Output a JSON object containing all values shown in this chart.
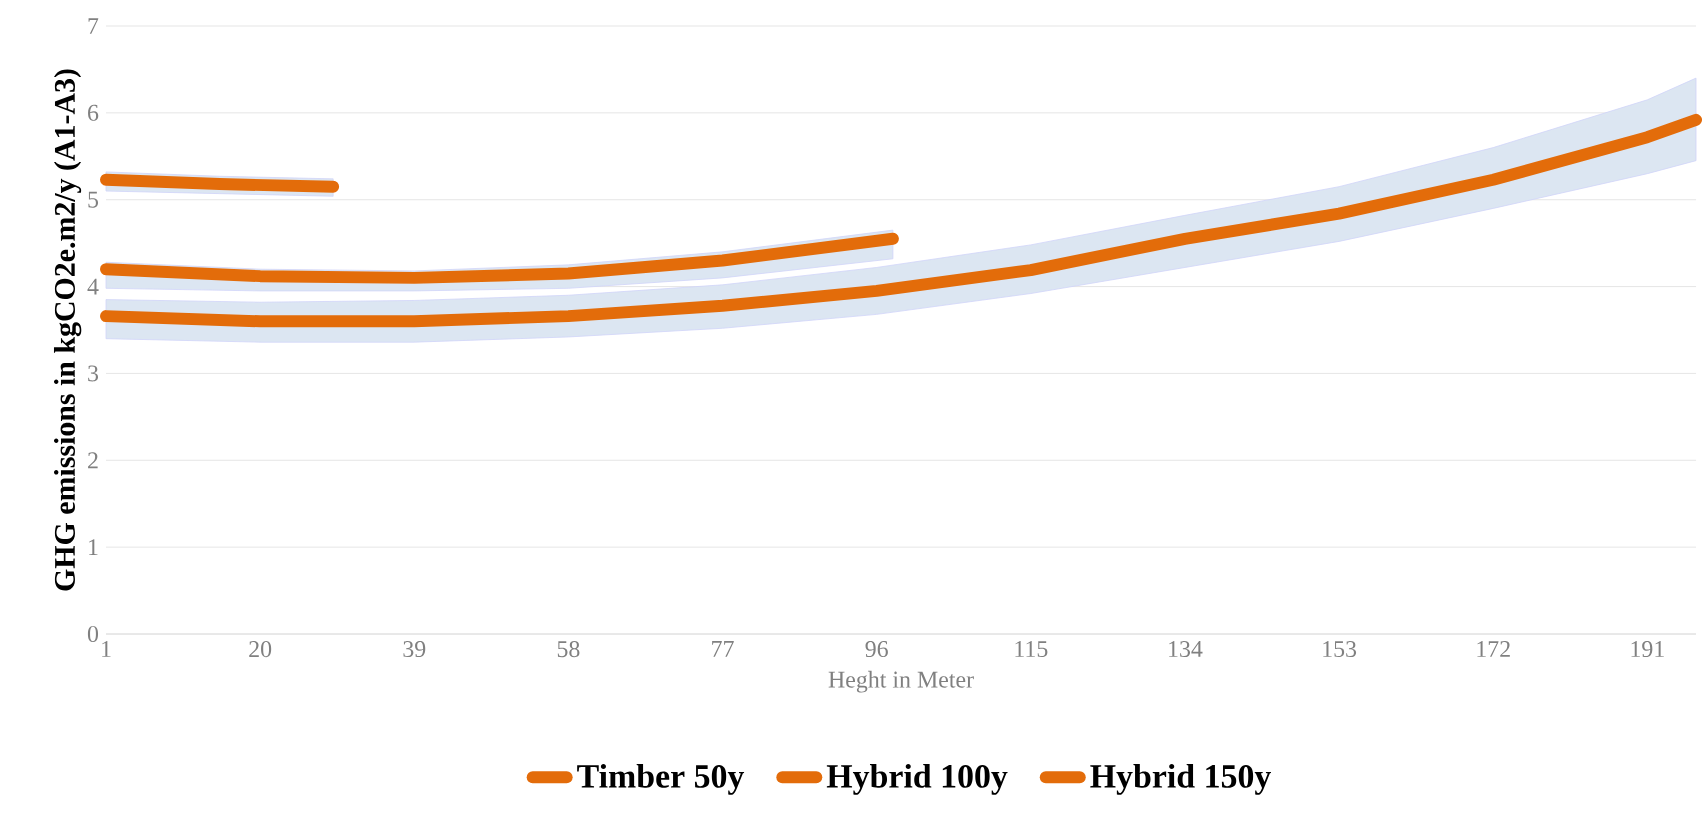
{
  "chart_data": {
    "type": "line",
    "xlabel": "Heght in Meter",
    "ylabel": "GHG emissions in kgCO2e.m2/y (A1-A3)",
    "xlim": [
      1,
      197
    ],
    "xticks": [
      1,
      20,
      39,
      58,
      77,
      96,
      115,
      134,
      153,
      172,
      191
    ],
    "ylim": [
      0,
      7
    ],
    "yticks": [
      0,
      1,
      2,
      3,
      4,
      5,
      6,
      7
    ],
    "grid": "y",
    "legend": "bottom",
    "marker": "none",
    "line_style": "solid",
    "series": [
      {
        "name": "Timber 50y",
        "color": "#e36c0a",
        "x": [
          1,
          15,
          29
        ],
        "values": [
          5.23,
          5.18,
          5.15
        ],
        "lower": [
          5.1,
          5.07,
          5.04
        ],
        "upper": [
          5.32,
          5.27,
          5.24
        ]
      },
      {
        "name": "Hybrid 100y",
        "color": "#e36c0a",
        "x": [
          1,
          20,
          39,
          58,
          77,
          98
        ],
        "values": [
          4.2,
          4.12,
          4.1,
          4.15,
          4.3,
          4.55
        ],
        "lower": [
          3.98,
          3.95,
          3.95,
          3.98,
          4.1,
          4.32
        ],
        "upper": [
          4.28,
          4.2,
          4.18,
          4.25,
          4.4,
          4.65
        ]
      },
      {
        "name": "Hybrid 150y",
        "color": "#e36c0a",
        "x": [
          1,
          20,
          39,
          58,
          77,
          96,
          115,
          134,
          153,
          172,
          191,
          197
        ],
        "values": [
          3.66,
          3.6,
          3.6,
          3.66,
          3.78,
          3.95,
          4.19,
          4.55,
          4.84,
          5.23,
          5.72,
          5.92
        ],
        "lower": [
          3.4,
          3.36,
          3.36,
          3.42,
          3.52,
          3.68,
          3.92,
          4.22,
          4.52,
          4.9,
          5.3,
          5.45
        ],
        "upper": [
          3.85,
          3.82,
          3.84,
          3.9,
          4.02,
          4.22,
          4.48,
          4.82,
          5.15,
          5.6,
          6.15,
          6.4
        ]
      }
    ]
  }
}
